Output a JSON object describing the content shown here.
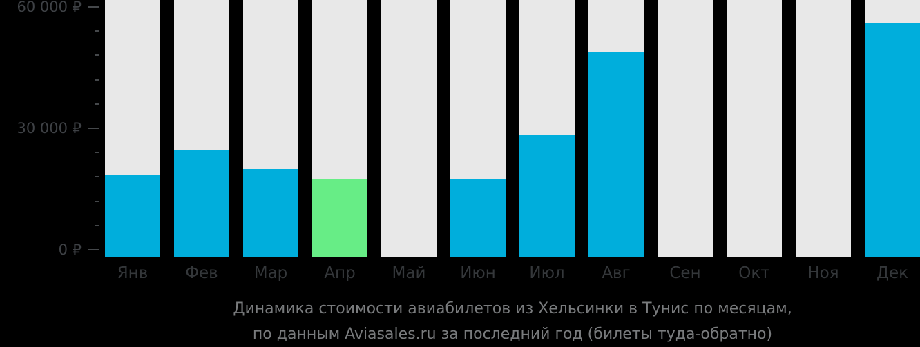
{
  "chart_data": {
    "type": "bar",
    "title_line1": "Динамика стоимости авиабилетов из Хельсинки в Тунис по месяцам,",
    "title_line2": "по данным Aviasales.ru за последний год (билеты туда-обратно)",
    "categories": [
      "Янв",
      "Фев",
      "Мар",
      "Апр",
      "Май",
      "Июн",
      "Июл",
      "Авг",
      "Сен",
      "Окт",
      "Ноя",
      "Дек"
    ],
    "values": [
      18500,
      24500,
      20000,
      17500,
      null,
      17500,
      28500,
      49000,
      null,
      null,
      null,
      56000
    ],
    "highlight_index": 3,
    "y_axis": {
      "major_ticks": [
        {
          "value": 0,
          "label": "0 ₽"
        },
        {
          "value": 30000,
          "label": "30 000 ₽"
        },
        {
          "value": 60000,
          "label": "60 000 ₽"
        }
      ],
      "minor_tick_step": 6000,
      "ylim": [
        0,
        60000
      ]
    },
    "grid": "off",
    "legend": "none",
    "colors": {
      "bar": "#00AEDC",
      "highlight_bar": "#67ED86",
      "column_background": "#E8E8E8",
      "page_background": "#000000",
      "axis_label": "#3E4145",
      "tick": "#45484B",
      "month_label": "#34373A",
      "title_text": "#797B7D"
    }
  }
}
